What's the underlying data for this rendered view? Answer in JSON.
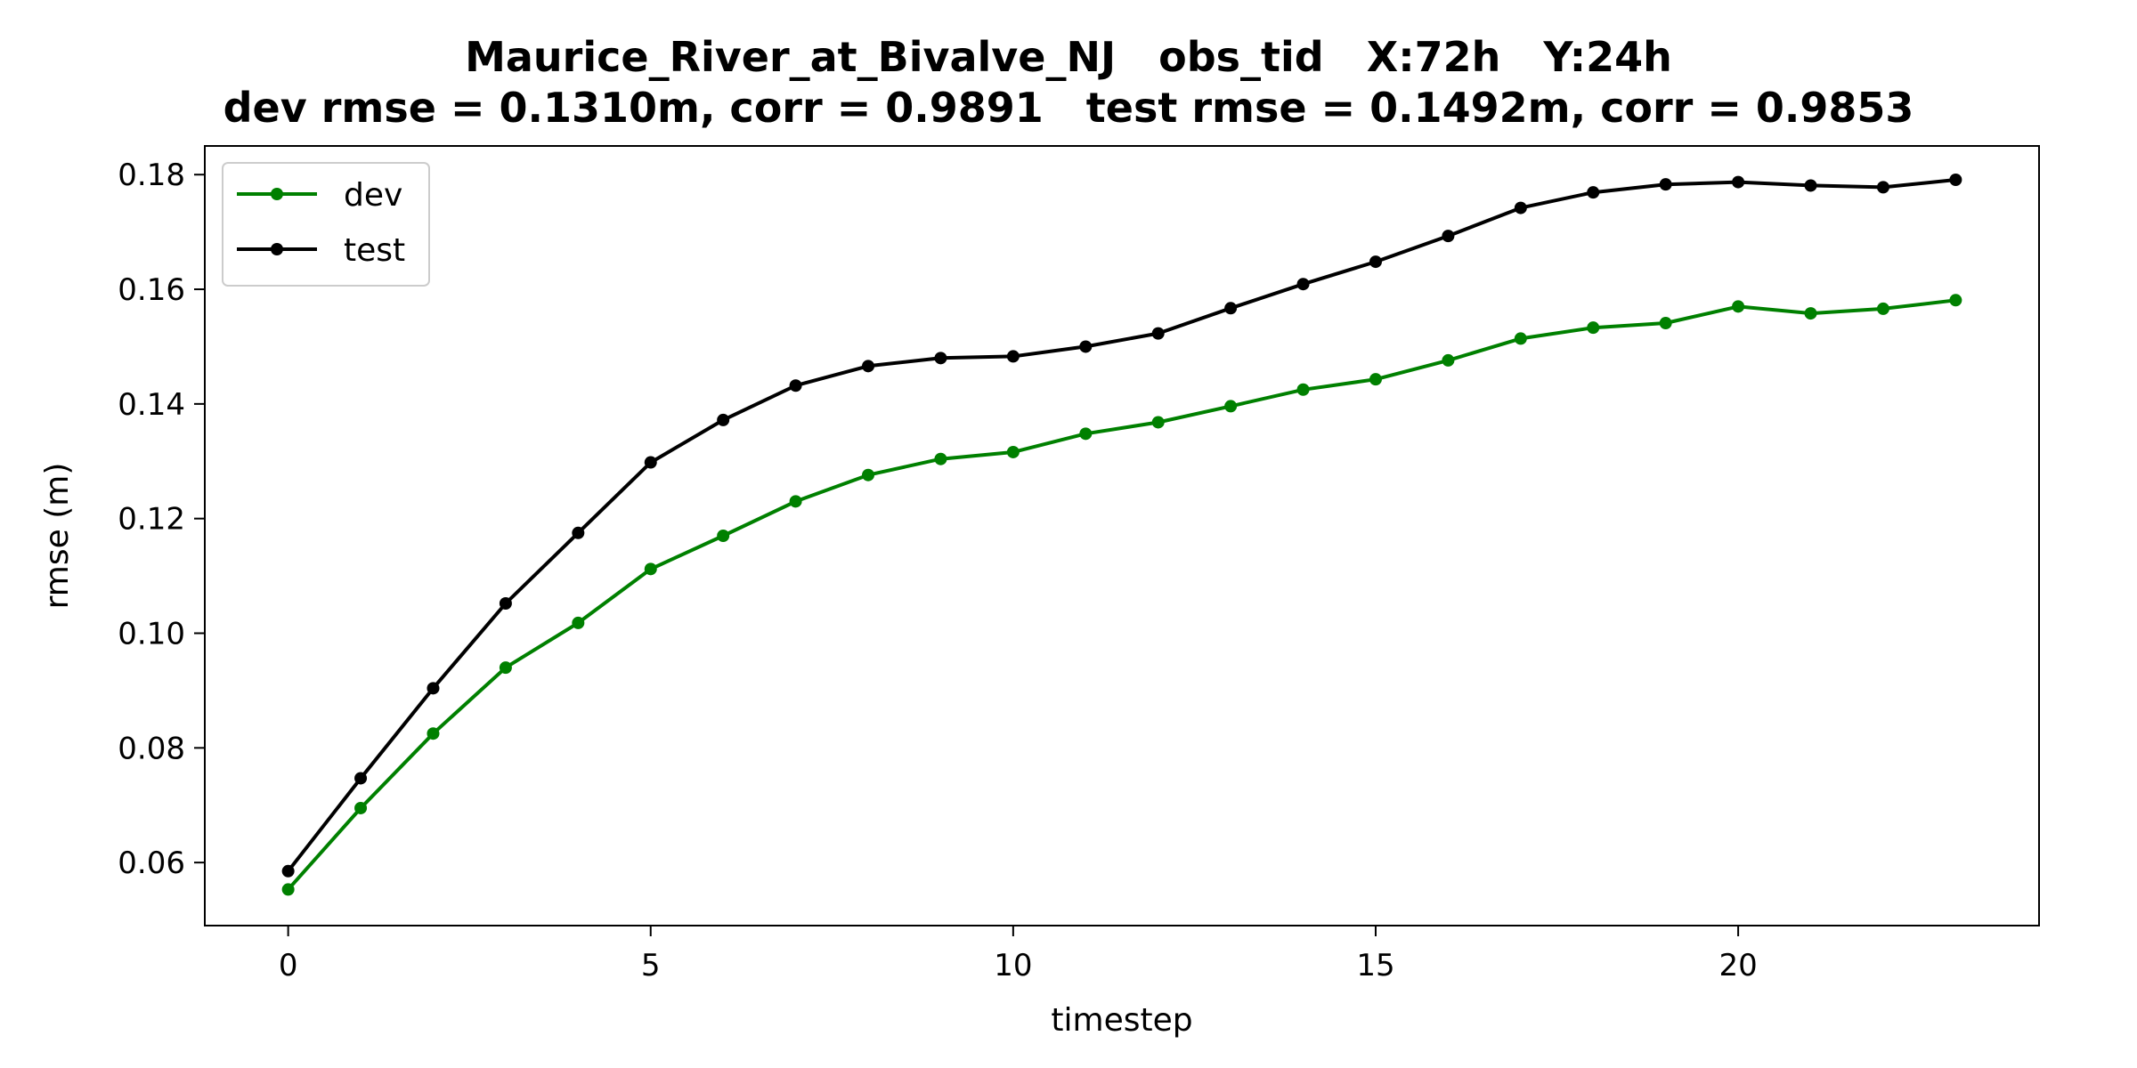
{
  "chart_data": {
    "type": "line",
    "title": "Maurice_River_at_Bivalve_NJ   obs_tid   X:72h   Y:24h",
    "subtitle": "dev rmse = 0.1310m, corr = 0.9891   test rmse = 0.1492m, corr = 0.9853",
    "xlabel": "timestep",
    "ylabel": "rmse (m)",
    "xlim": [
      -1.15,
      24.15
    ],
    "ylim": [
      0.049,
      0.185
    ],
    "xticks": [
      0,
      5,
      10,
      15,
      20
    ],
    "xtick_labels": [
      "0",
      "5",
      "10",
      "15",
      "20"
    ],
    "yticks": [
      0.06,
      0.08,
      0.1,
      0.12,
      0.14,
      0.16,
      0.18
    ],
    "ytick_labels": [
      "0.06",
      "0.08",
      "0.10",
      "0.12",
      "0.14",
      "0.16",
      "0.18"
    ],
    "grid": false,
    "legend_position": "top-left",
    "x": [
      0,
      1,
      2,
      3,
      4,
      5,
      6,
      7,
      8,
      9,
      10,
      11,
      12,
      13,
      14,
      15,
      16,
      17,
      18,
      19,
      20,
      21,
      22,
      23
    ],
    "series": [
      {
        "name": "dev",
        "color": "#008000",
        "values": [
          0.0553,
          0.0695,
          0.0825,
          0.094,
          0.1018,
          0.1112,
          0.117,
          0.123,
          0.1276,
          0.1304,
          0.1316,
          0.1348,
          0.1368,
          0.1396,
          0.1425,
          0.1443,
          0.1476,
          0.1514,
          0.1533,
          0.1541,
          0.157,
          0.1558,
          0.1566,
          0.1581
        ]
      },
      {
        "name": "test",
        "color": "#000000",
        "values": [
          0.0585,
          0.0747,
          0.0904,
          0.1052,
          0.1175,
          0.1298,
          0.1372,
          0.1432,
          0.1466,
          0.148,
          0.1483,
          0.15,
          0.1523,
          0.1567,
          0.1609,
          0.1648,
          0.1693,
          0.1742,
          0.1769,
          0.1783,
          0.1787,
          0.1781,
          0.1778,
          0.1791
        ]
      }
    ]
  }
}
